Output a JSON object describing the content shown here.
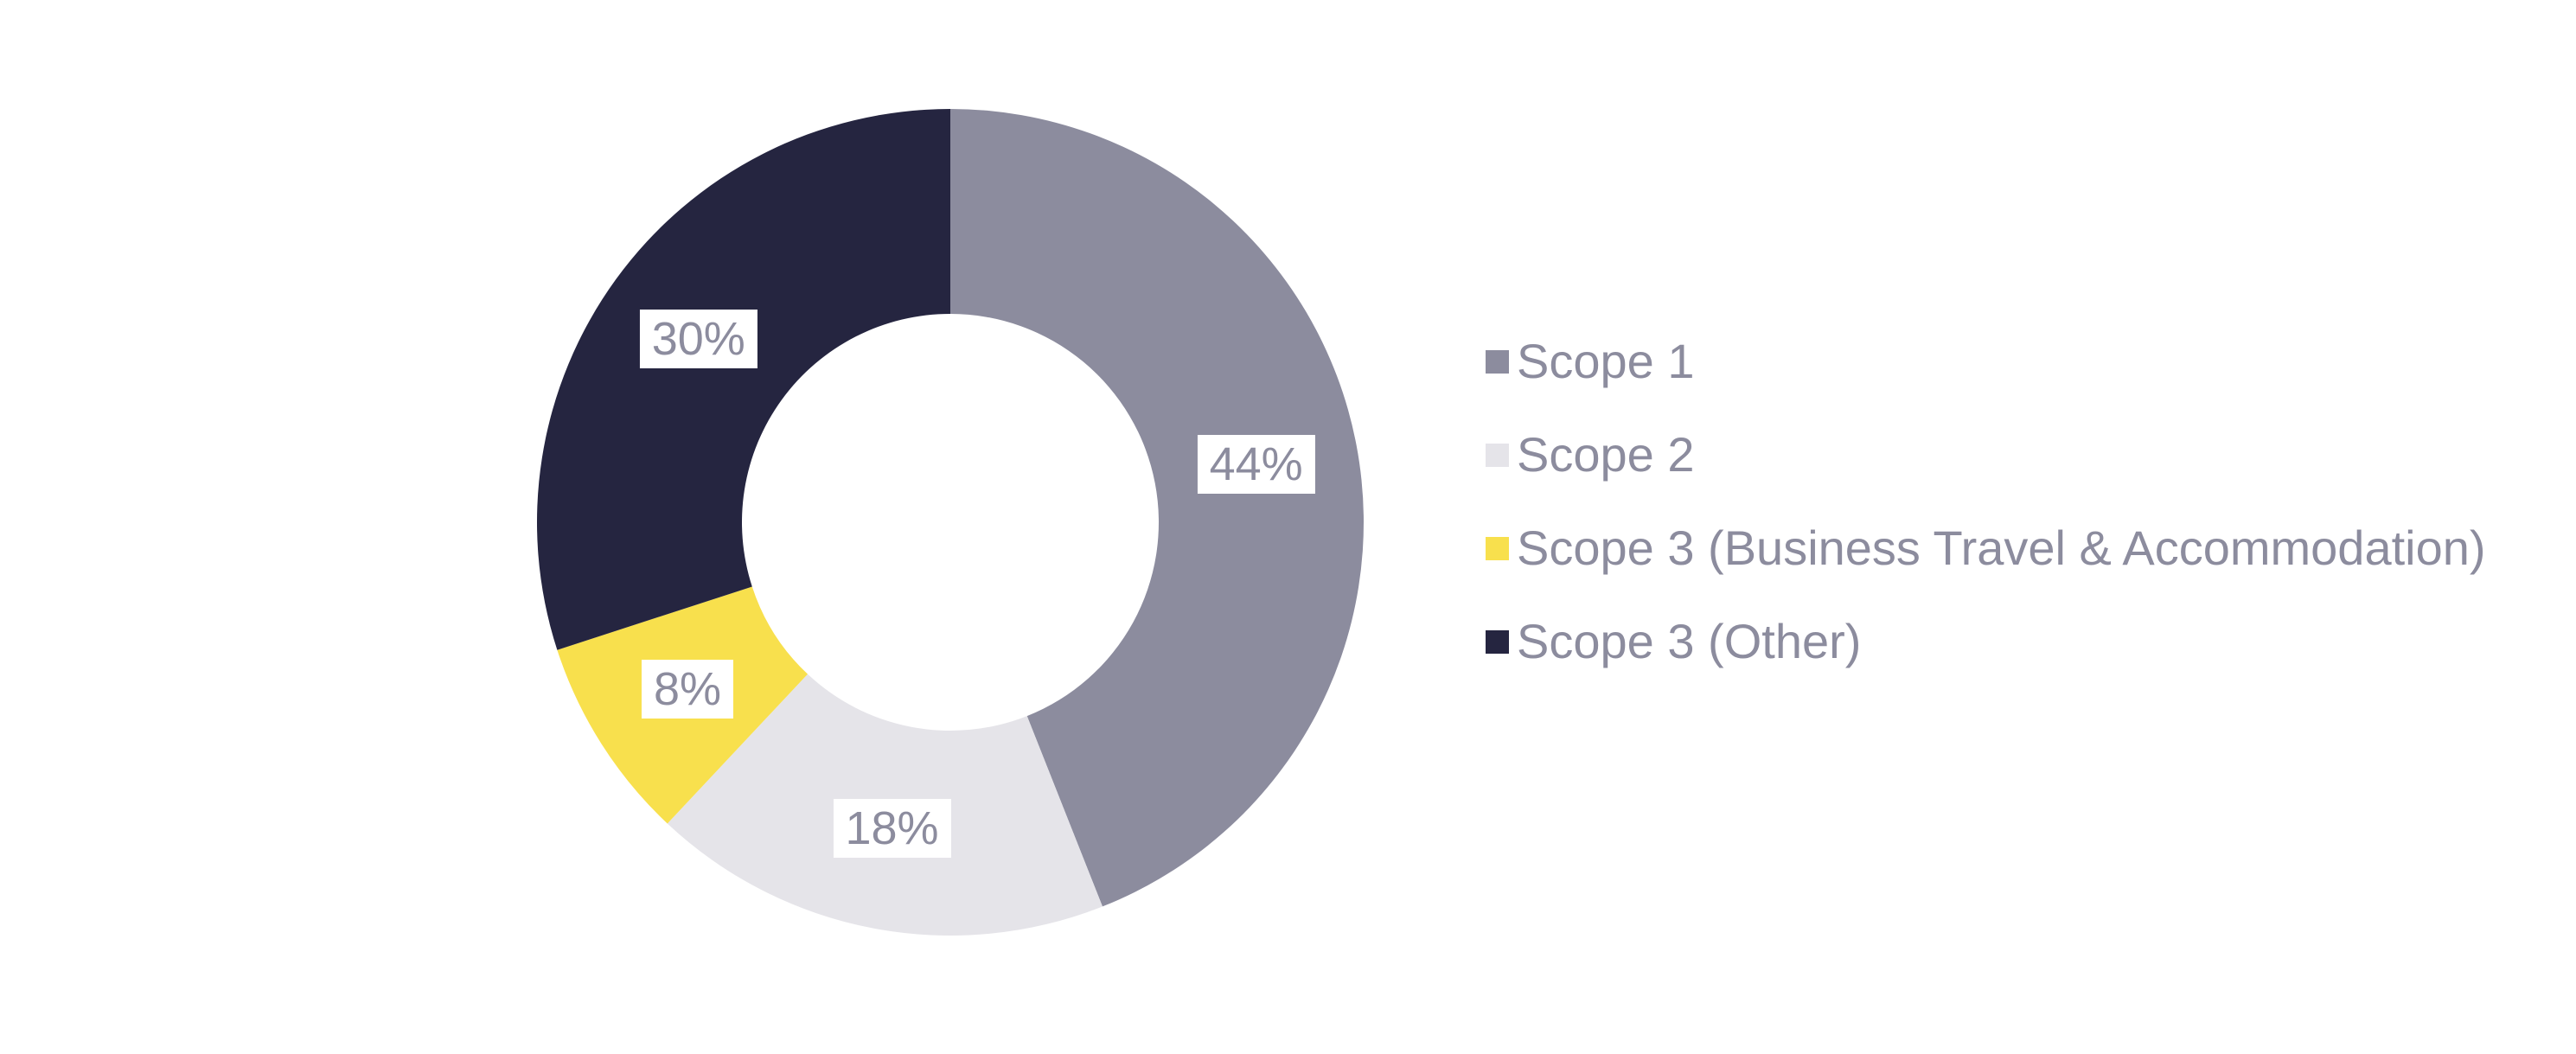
{
  "chart_data": {
    "type": "pie",
    "subtype": "donut",
    "title": "",
    "categories": [
      "Scope 1",
      "Scope 2",
      "Scope 3 (Business Travel & Accommodation)",
      "Scope 3 (Other)"
    ],
    "values": [
      44,
      18,
      8,
      30
    ],
    "series": [
      {
        "label": "Scope 1",
        "value": 44,
        "display": "44%",
        "color": "#8C8C9E"
      },
      {
        "label": "Scope 2",
        "value": 18,
        "display": "18%",
        "color": "#E5E4E9"
      },
      {
        "label": "Scope 3 (Business Travel & Accommodation)",
        "value": 8,
        "display": "8%",
        "color": "#F8E04D"
      },
      {
        "label": "Scope 3 (Other)",
        "value": 30,
        "display": "30%",
        "color": "#252540"
      }
    ],
    "start_angle_deg": 0,
    "direction": "clockwise",
    "inner_radius_ratio": 0.5,
    "label_format": "percent",
    "label_text_color": "#8C8C9E",
    "label_background": "#FFFFFF",
    "legend_position": "right",
    "legend_text_color": "#8C8C9E",
    "background_color": "#FFFFFF",
    "grid": false
  }
}
